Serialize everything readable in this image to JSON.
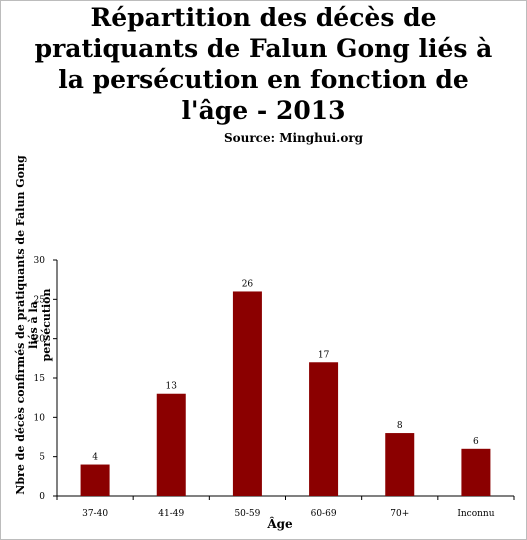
{
  "title_lines": [
    "Répartition des décès de",
    "pratiquants de Falun Gong liés à",
    "la persécution en fonction de",
    "l'âge - 2013"
  ],
  "subtitle": "Source: Minghui.org",
  "chart_data": {
    "type": "bar",
    "title": "Répartition des décès de pratiquants de Falun Gong liés à la persécution en fonction de l'âge - 2013",
    "subtitle": "Source: Minghui.org",
    "xlabel": "Âge",
    "ylabel_lines": [
      "Nbre de décès confirmés de pratiquants de Falun Gong liés à la",
      "persécution"
    ],
    "categories": [
      "37-40",
      "41-49",
      "50-59",
      "60-69",
      "70+",
      "Inconnu"
    ],
    "values": [
      4,
      13,
      26,
      17,
      8,
      6
    ],
    "ylim": [
      0,
      30
    ],
    "yticks": [
      0,
      5,
      10,
      15,
      20,
      25,
      30
    ],
    "grid": false,
    "legend": "none",
    "bar_color": "#8b0000"
  }
}
